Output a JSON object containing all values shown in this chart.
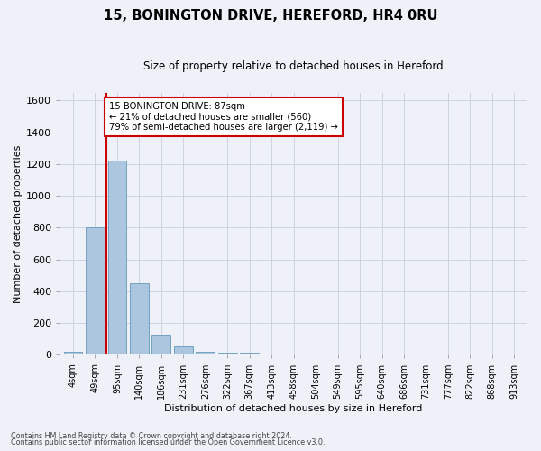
{
  "title": "15, BONINGTON DRIVE, HEREFORD, HR4 0RU",
  "subtitle": "Size of property relative to detached houses in Hereford",
  "xlabel": "Distribution of detached houses by size in Hereford",
  "ylabel": "Number of detached properties",
  "footnote1": "Contains HM Land Registry data © Crown copyright and database right 2024.",
  "footnote2": "Contains public sector information licensed under the Open Government Licence v3.0.",
  "bar_labels": [
    "4sqm",
    "49sqm",
    "95sqm",
    "140sqm",
    "186sqm",
    "231sqm",
    "276sqm",
    "322sqm",
    "367sqm",
    "413sqm",
    "458sqm",
    "504sqm",
    "549sqm",
    "595sqm",
    "640sqm",
    "686sqm",
    "731sqm",
    "777sqm",
    "822sqm",
    "868sqm",
    "913sqm"
  ],
  "bar_values": [
    22,
    800,
    1220,
    450,
    125,
    55,
    22,
    15,
    12,
    0,
    0,
    0,
    0,
    0,
    0,
    0,
    0,
    0,
    0,
    0,
    0
  ],
  "bar_color": "#adc6e0",
  "bar_edge_color": "#6699bb",
  "ylim": [
    0,
    1650
  ],
  "yticks": [
    0,
    200,
    400,
    600,
    800,
    1000,
    1200,
    1400,
    1600
  ],
  "vline_x": 1.5,
  "vline_color": "#cc0000",
  "annotation_line1": "15 BONINGTON DRIVE: 87sqm",
  "annotation_line2": "← 21% of detached houses are smaller (560)",
  "annotation_line3": "79% of semi-detached houses are larger (2,119) →",
  "annotation_box_color": "#ffffff",
  "annotation_box_edge": "#cc0000",
  "bg_color": "#eef2f8",
  "grid_color": "#c8d0dc",
  "title_fontsize": 10.5,
  "subtitle_fontsize": 8.5
}
